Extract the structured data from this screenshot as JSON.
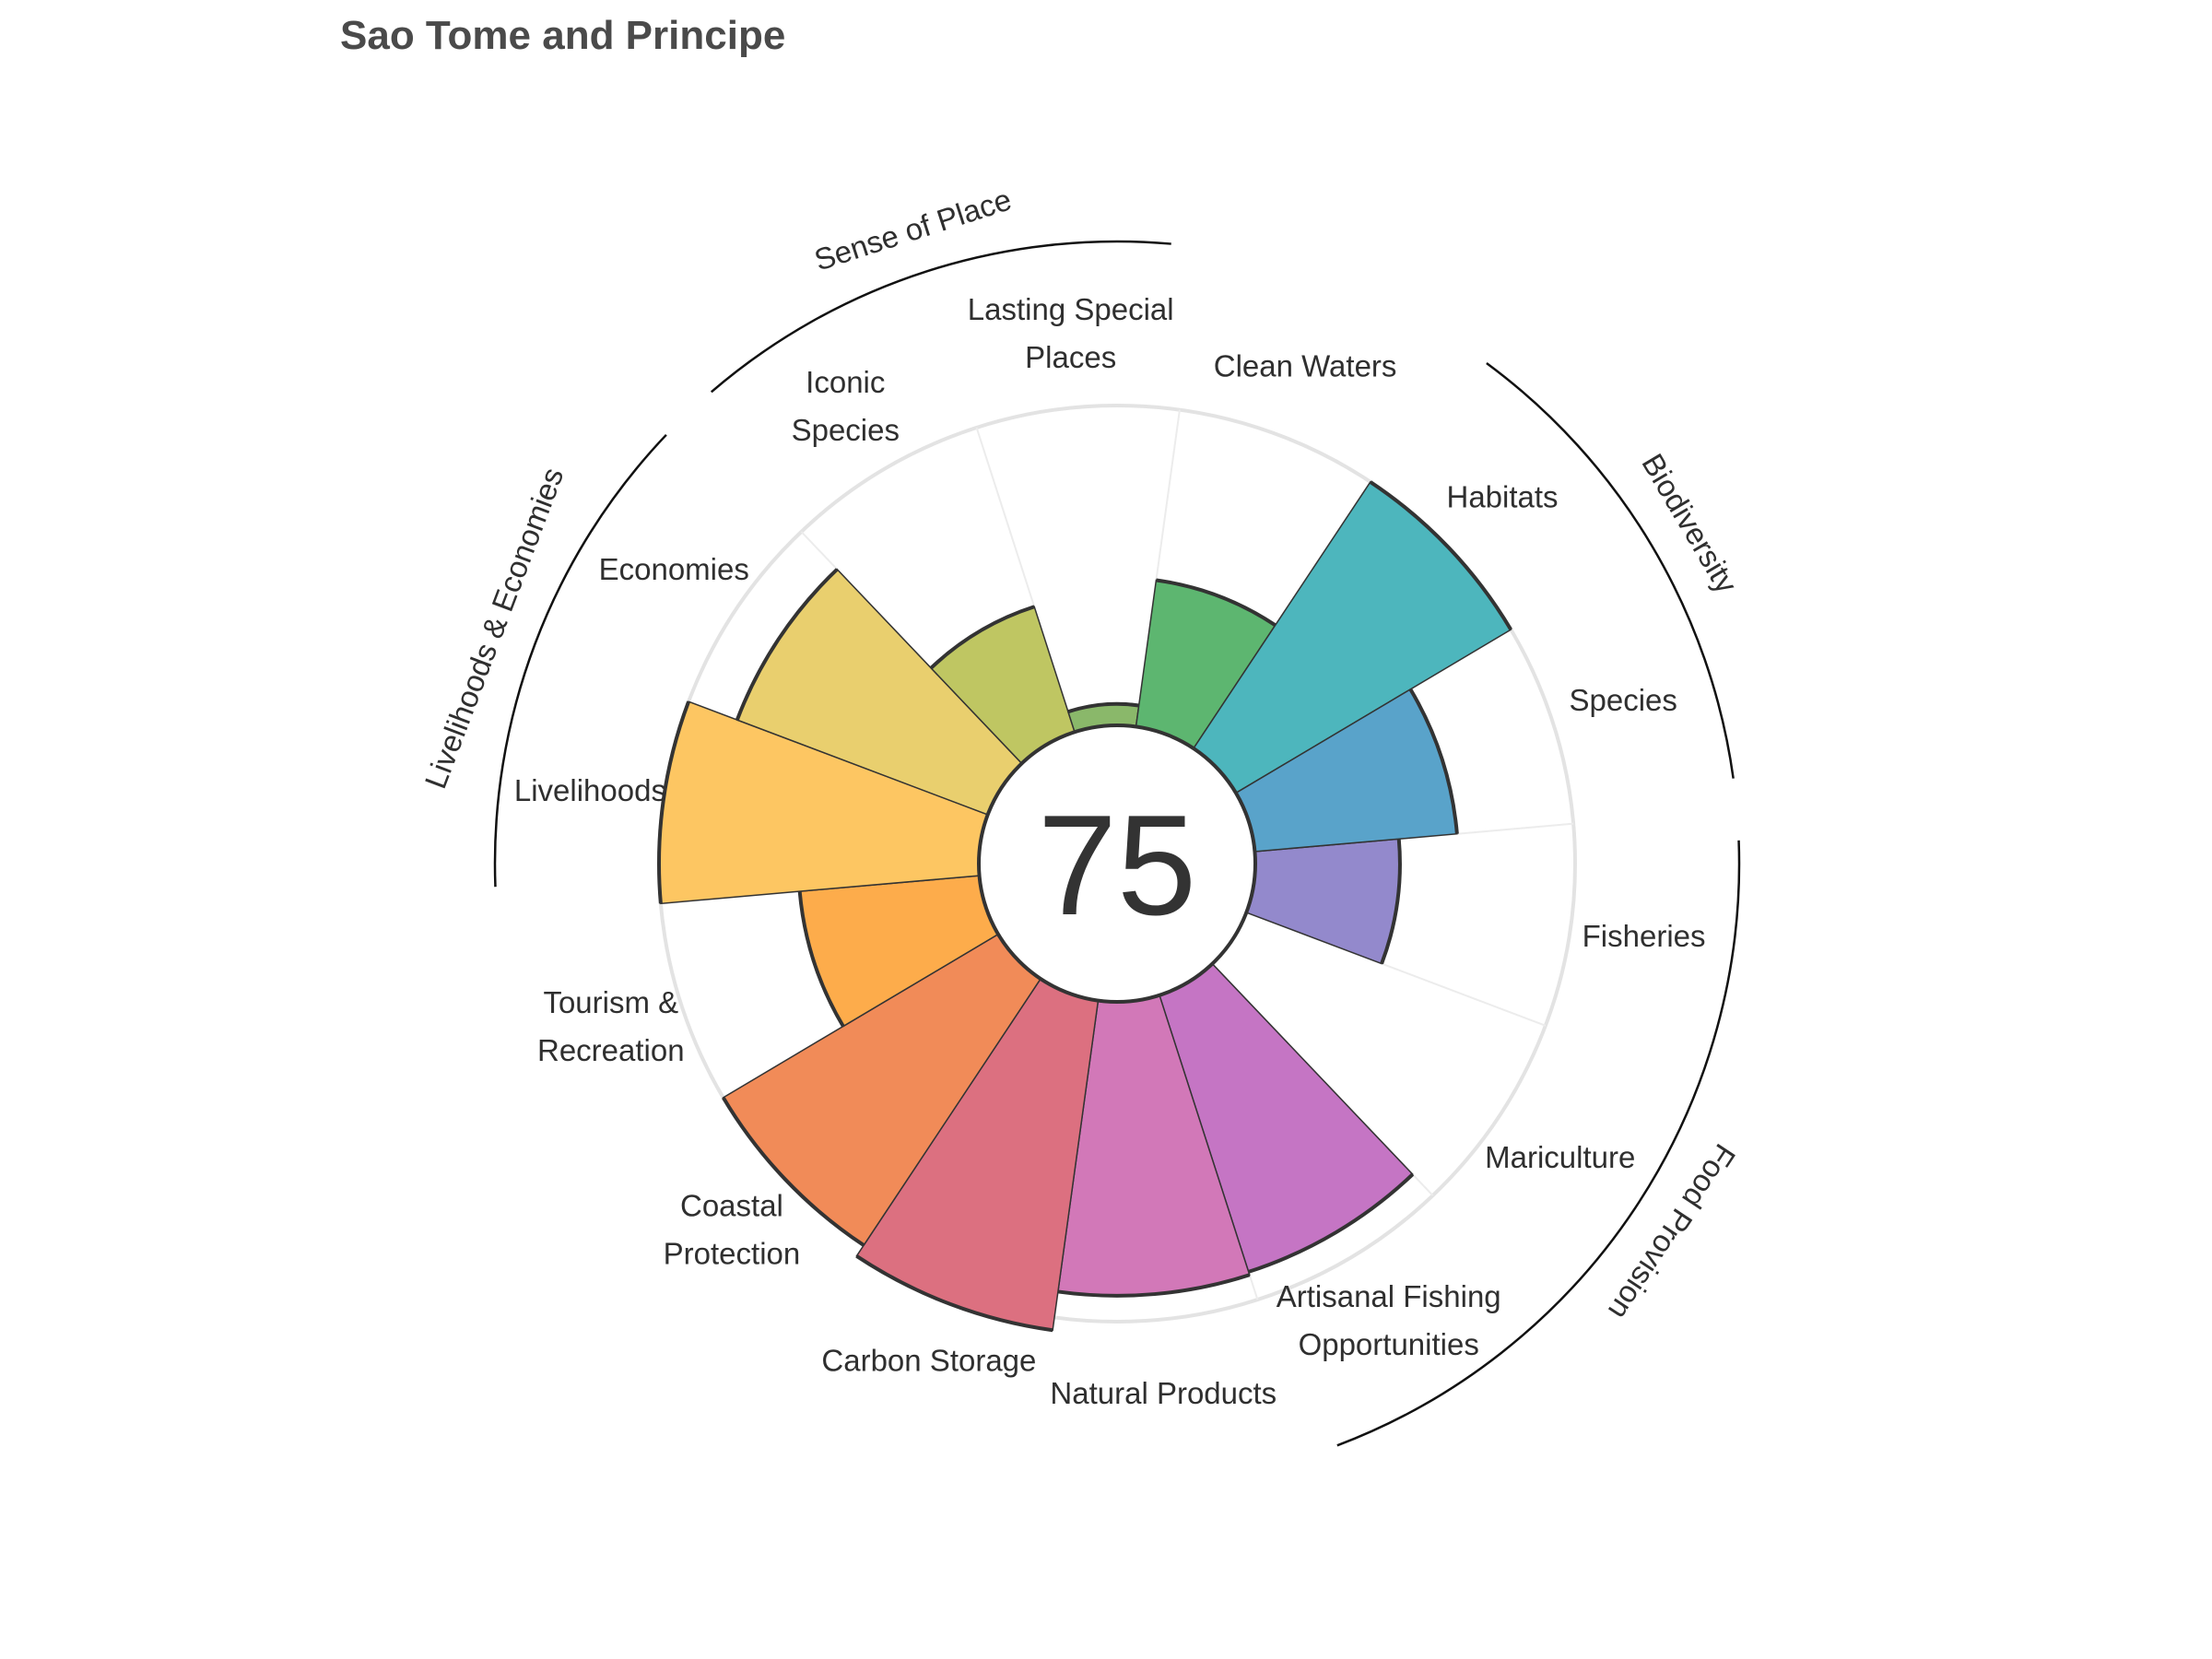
{
  "chart_data": {
    "type": "polar-bar",
    "title": "Sao Tome and Principe",
    "center_score": "75",
    "max_value": 100,
    "grid": true,
    "petals": [
      {
        "id": "fisheries",
        "label": [
          "Fisheries"
        ],
        "value": 46,
        "color": "#9389cc"
      },
      {
        "id": "mariculture",
        "label": [
          "Mariculture"
        ],
        "value": 0,
        "color": "#a97dd0"
      },
      {
        "id": "artisanal",
        "label": [
          "Artisanal Fishing",
          "Opportunities"
        ],
        "value": 91,
        "color": "#c575c4"
      },
      {
        "id": "natural-products",
        "label": [
          "Natural Products"
        ],
        "value": 92,
        "color": "#d278b8"
      },
      {
        "id": "carbon-storage",
        "label": [
          "Carbon Storage"
        ],
        "value": 104,
        "color": "#dc7080"
      },
      {
        "id": "coastal-protection",
        "label": [
          "Coastal",
          "Protection"
        ],
        "value": 100,
        "color": "#f18b58"
      },
      {
        "id": "tourism",
        "label": [
          "Tourism &",
          "Recreation"
        ],
        "value": 57,
        "color": "#fdac4b"
      },
      {
        "id": "livelihoods",
        "label": [
          "Livelihoods"
        ],
        "value": 100,
        "color": "#fdc662"
      },
      {
        "id": "economies",
        "label": [
          "Economies"
        ],
        "value": 84,
        "color": "#e9cf6e"
      },
      {
        "id": "iconic-species",
        "label": [
          "Iconic",
          "Species"
        ],
        "value": 42,
        "color": "#bfc662"
      },
      {
        "id": "lasting-special-places",
        "label": [
          "Lasting Special",
          "Places"
        ],
        "value": 8,
        "color": "#8ab86a"
      },
      {
        "id": "clean-waters",
        "label": [
          "Clean Waters"
        ],
        "value": 47,
        "color": "#5db670"
      },
      {
        "id": "habitats",
        "label": [
          "Habitats"
        ],
        "value": 100,
        "color": "#4db6bd"
      },
      {
        "id": "species",
        "label": [
          "Species"
        ],
        "value": 64,
        "color": "#59a3ca"
      }
    ],
    "groups": [
      {
        "id": "food-provision",
        "label": "Food Provision"
      },
      {
        "id": "biodiversity",
        "label": "Biodiversity"
      },
      {
        "id": "sense-of-place",
        "label": "Sense of Place"
      },
      {
        "id": "livelihoods-economies",
        "label": "Livelihoods & Economies"
      }
    ]
  }
}
